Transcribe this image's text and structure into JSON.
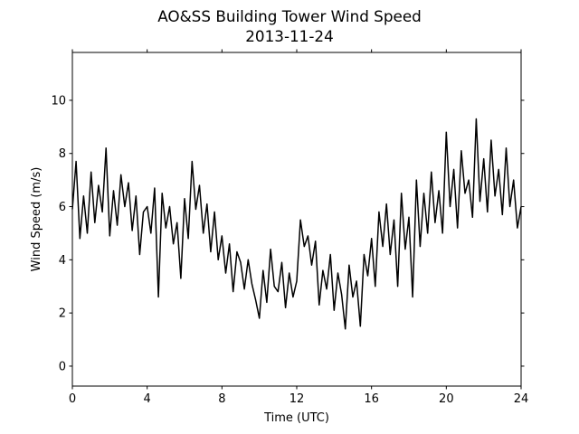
{
  "chart_data": {
    "type": "line",
    "title": "AO&SS Building Tower Wind Speed",
    "subtitle": "2013-11-24",
    "xlabel": "Time (UTC)",
    "ylabel": "Wind Speed (m/s)",
    "xlim": [
      0,
      24
    ],
    "ylim": [
      -0.75,
      11.8
    ],
    "xticks": [
      0,
      4,
      8,
      12,
      16,
      20,
      24
    ],
    "yticks": [
      0,
      2,
      4,
      6,
      8,
      10
    ],
    "grid": false,
    "line_color": "#000000",
    "series": [
      {
        "x": [
          0,
          0.2,
          0.4,
          0.6,
          0.8,
          1,
          1.2,
          1.4,
          1.6,
          1.8,
          2,
          2.2,
          2.4,
          2.6,
          2.8,
          3,
          3.2,
          3.4,
          3.6,
          3.8,
          4,
          4.2,
          4.4,
          4.6,
          4.8,
          5,
          5.2,
          5.4,
          5.6,
          5.8,
          6,
          6.2,
          6.4,
          6.6,
          6.8,
          7,
          7.2,
          7.4,
          7.6,
          7.8,
          8,
          8.2,
          8.4,
          8.6,
          8.8,
          9,
          9.2,
          9.4,
          9.6,
          9.8,
          10,
          10.2,
          10.4,
          10.6,
          10.8,
          11,
          11.2,
          11.4,
          11.6,
          11.8,
          12,
          12.2,
          12.4,
          12.6,
          12.8,
          13,
          13.2,
          13.4,
          13.6,
          13.8,
          14,
          14.2,
          14.4,
          14.6,
          14.8,
          15,
          15.2,
          15.4,
          15.6,
          15.8,
          16,
          16.2,
          16.4,
          16.6,
          16.8,
          17,
          17.2,
          17.4,
          17.6,
          17.8,
          18,
          18.2,
          18.4,
          18.6,
          18.8,
          19,
          19.2,
          19.4,
          19.6,
          19.8,
          20,
          20.2,
          20.4,
          20.6,
          20.8,
          21,
          21.2,
          21.4,
          21.6,
          21.8,
          22,
          22.2,
          22.4,
          22.6,
          22.8,
          23,
          23.2,
          23.4,
          23.6,
          23.8,
          24
        ],
        "values": [
          5.9,
          7.7,
          4.8,
          6.4,
          5.0,
          7.3,
          5.4,
          6.8,
          5.8,
          8.2,
          4.9,
          6.6,
          5.3,
          7.2,
          6.0,
          6.9,
          5.1,
          6.4,
          4.2,
          5.8,
          6.0,
          5.0,
          6.7,
          2.6,
          6.5,
          5.2,
          6.0,
          4.6,
          5.4,
          3.3,
          6.3,
          4.8,
          7.7,
          5.9,
          6.8,
          5.0,
          6.1,
          4.3,
          5.8,
          4.0,
          4.9,
          3.5,
          4.6,
          2.8,
          4.3,
          3.9,
          2.9,
          4.0,
          3.1,
          2.5,
          1.8,
          3.6,
          2.4,
          4.4,
          3.0,
          2.8,
          3.9,
          2.2,
          3.5,
          2.6,
          3.2,
          5.5,
          4.5,
          4.9,
          3.8,
          4.7,
          2.3,
          3.6,
          2.9,
          4.2,
          2.1,
          3.5,
          2.7,
          1.4,
          3.8,
          2.6,
          3.2,
          1.5,
          4.2,
          3.4,
          4.8,
          3.0,
          5.8,
          4.5,
          6.1,
          4.2,
          5.5,
          3.0,
          6.5,
          4.4,
          5.6,
          2.6,
          7.0,
          4.5,
          6.5,
          5.0,
          7.3,
          5.4,
          6.6,
          5.0,
          8.8,
          6.0,
          7.4,
          5.2,
          8.1,
          6.5,
          7.0,
          5.6,
          9.3,
          6.2,
          7.8,
          5.8,
          8.5,
          6.4,
          7.4,
          5.7,
          8.2,
          6.0,
          7.0,
          5.2,
          6.0
        ]
      }
    ]
  }
}
